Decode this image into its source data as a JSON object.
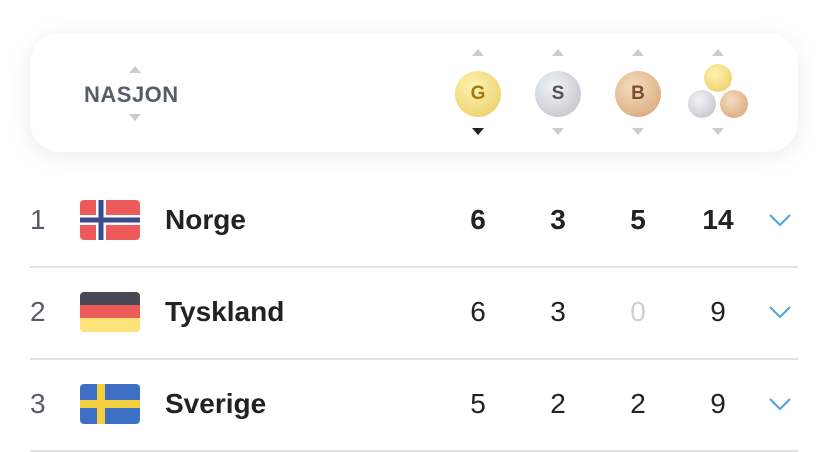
{
  "header": {
    "nation": "NASJON",
    "gold": "G",
    "silver": "S",
    "bronze": "B"
  },
  "table": {
    "rows": [
      {
        "rank": "1",
        "country": "Norge",
        "gold": "6",
        "silver": "3",
        "bronze": "5",
        "total": "14"
      },
      {
        "rank": "2",
        "country": "Tyskland",
        "gold": "6",
        "silver": "3",
        "bronze": "0",
        "total": "9"
      },
      {
        "rank": "3",
        "country": "Sverige",
        "gold": "5",
        "silver": "2",
        "bronze": "2",
        "total": "9"
      }
    ]
  }
}
